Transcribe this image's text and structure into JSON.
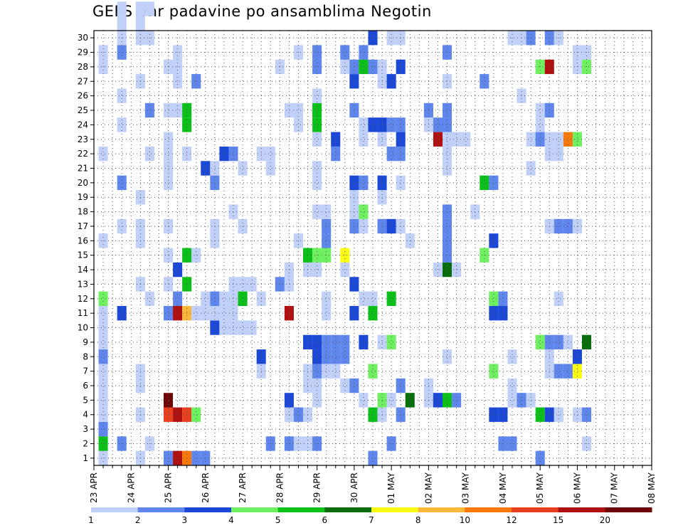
{
  "chart_data": {
    "type": "heatmap",
    "title": "GEFS 6hr padavine po ansamblima Negotin",
    "xlabel": "",
    "ylabel": "",
    "x_tick_labels": [
      "23 APR",
      "24 APR",
      "25 APR",
      "26 APR",
      "27 APR",
      "28 APR",
      "29 APR",
      "30 APR",
      "01 MAY",
      "02 MAY",
      "03 MAY",
      "04 MAY",
      "05 MAY",
      "06 MAY",
      "07 MAY",
      "08 MAY"
    ],
    "y_tick_labels": [
      "1",
      "2",
      "3",
      "4",
      "5",
      "6",
      "7",
      "8",
      "9",
      "10",
      "11",
      "12",
      "13",
      "14",
      "15",
      "16",
      "17",
      "18",
      "19",
      "20",
      "21",
      "22",
      "23",
      "24",
      "25",
      "26",
      "27",
      "28",
      "29",
      "30"
    ],
    "ylim": [
      1,
      30
    ],
    "x_unit": "6-hour step from 23 APR 00Z",
    "grid": true,
    "colorbar": {
      "placement": "bottom",
      "colors": [
        "#c0d0f8",
        "#5e86ec",
        "#1c48d8",
        "#6ef060",
        "#0cc01a",
        "#086e0c",
        "#fcfc12",
        "#fcb83a",
        "#f8780c",
        "#e8401e",
        "#b01010",
        "#6e0808"
      ],
      "labels": [
        "1",
        "2",
        "3",
        "4",
        "5",
        "6",
        "7",
        "8",
        "10",
        "12",
        "15",
        "20"
      ]
    },
    "cells": [
      [
        1,
        1,
        1
      ],
      [
        1,
        2,
        5
      ],
      [
        1,
        3,
        2
      ],
      [
        1,
        4,
        1
      ],
      [
        1,
        5,
        1
      ],
      [
        1,
        6,
        1
      ],
      [
        1,
        7,
        1
      ],
      [
        1,
        8,
        2
      ],
      [
        1,
        9,
        1
      ],
      [
        1,
        10,
        1
      ],
      [
        1,
        11,
        1
      ],
      [
        1,
        12,
        4
      ],
      [
        1,
        16,
        1
      ],
      [
        1,
        22,
        1
      ],
      [
        1,
        28,
        1
      ],
      [
        1,
        29,
        1
      ],
      [
        3,
        2,
        2
      ],
      [
        3,
        11,
        3
      ],
      [
        3,
        17,
        1
      ],
      [
        3,
        20,
        2
      ],
      [
        3,
        24,
        1
      ],
      [
        3,
        26,
        1
      ],
      [
        3,
        29,
        2
      ],
      [
        3,
        30,
        1
      ],
      [
        3,
        31,
        1
      ],
      [
        3,
        32,
        1
      ],
      [
        5,
        1,
        1
      ],
      [
        5,
        4,
        1
      ],
      [
        5,
        6,
        1
      ],
      [
        5,
        7,
        1
      ],
      [
        5,
        13,
        1
      ],
      [
        5,
        16,
        1
      ],
      [
        5,
        17,
        1
      ],
      [
        5,
        19,
        1
      ],
      [
        5,
        27,
        1
      ],
      [
        5,
        30,
        1
      ],
      [
        5,
        31,
        1
      ],
      [
        5,
        32,
        1
      ],
      [
        6,
        2,
        1
      ],
      [
        6,
        12,
        1
      ],
      [
        6,
        22,
        1
      ],
      [
        6,
        25,
        2
      ],
      [
        6,
        30,
        1
      ],
      [
        6,
        32,
        1
      ],
      [
        8,
        1,
        2
      ],
      [
        8,
        4,
        10
      ],
      [
        8,
        5,
        12
      ],
      [
        8,
        11,
        2
      ],
      [
        8,
        13,
        1
      ],
      [
        8,
        15,
        1
      ],
      [
        8,
        17,
        1
      ],
      [
        8,
        20,
        1
      ],
      [
        8,
        21,
        1
      ],
      [
        8,
        22,
        1
      ],
      [
        8,
        23,
        1
      ],
      [
        8,
        25,
        1
      ],
      [
        8,
        28,
        1
      ],
      [
        9,
        1,
        11
      ],
      [
        9,
        4,
        11
      ],
      [
        9,
        11,
        11
      ],
      [
        9,
        12,
        2
      ],
      [
        9,
        14,
        3
      ],
      [
        9,
        25,
        1
      ],
      [
        9,
        27,
        1
      ],
      [
        9,
        28,
        1
      ],
      [
        9,
        29,
        1
      ],
      [
        10,
        1,
        9
      ],
      [
        10,
        4,
        10
      ],
      [
        10,
        11,
        8
      ],
      [
        10,
        13,
        5
      ],
      [
        10,
        15,
        5
      ],
      [
        10,
        22,
        1
      ],
      [
        10,
        24,
        5
      ],
      [
        10,
        25,
        5
      ],
      [
        11,
        1,
        2
      ],
      [
        11,
        4,
        4
      ],
      [
        11,
        11,
        1
      ],
      [
        11,
        15,
        1
      ],
      [
        11,
        27,
        2
      ],
      [
        12,
        1,
        2
      ],
      [
        12,
        11,
        1
      ],
      [
        12,
        12,
        1
      ],
      [
        12,
        21,
        3
      ],
      [
        13,
        10,
        3
      ],
      [
        13,
        11,
        1
      ],
      [
        13,
        12,
        2
      ],
      [
        13,
        16,
        1
      ],
      [
        13,
        17,
        1
      ],
      [
        13,
        20,
        2
      ],
      [
        13,
        21,
        1
      ],
      [
        14,
        10,
        1
      ],
      [
        14,
        11,
        1
      ],
      [
        14,
        12,
        1
      ],
      [
        14,
        22,
        3
      ],
      [
        15,
        10,
        1
      ],
      [
        15,
        11,
        1
      ],
      [
        15,
        12,
        1
      ],
      [
        15,
        13,
        1
      ],
      [
        15,
        18,
        1
      ],
      [
        15,
        22,
        2
      ],
      [
        16,
        10,
        1
      ],
      [
        16,
        12,
        5
      ],
      [
        16,
        13,
        1
      ],
      [
        16,
        17,
        1
      ],
      [
        16,
        21,
        1
      ],
      [
        17,
        10,
        1
      ],
      [
        17,
        13,
        1
      ],
      [
        18,
        7,
        1
      ],
      [
        18,
        8,
        3
      ],
      [
        18,
        12,
        1
      ],
      [
        18,
        22,
        1
      ],
      [
        19,
        2,
        2
      ],
      [
        19,
        21,
        1
      ],
      [
        19,
        22,
        1
      ],
      [
        20,
        13,
        2
      ],
      [
        20,
        28,
        1
      ],
      [
        21,
        2,
        2
      ],
      [
        21,
        4,
        1
      ],
      [
        21,
        5,
        3
      ],
      [
        21,
        11,
        11
      ],
      [
        21,
        13,
        1
      ],
      [
        21,
        14,
        1
      ],
      [
        21,
        25,
        1
      ],
      [
        22,
        2,
        1
      ],
      [
        22,
        4,
        2
      ],
      [
        22,
        16,
        1
      ],
      [
        22,
        24,
        1
      ],
      [
        22,
        25,
        1
      ],
      [
        22,
        29,
        1
      ],
      [
        23,
        2,
        1
      ],
      [
        23,
        4,
        1
      ],
      [
        23,
        6,
        1
      ],
      [
        23,
        7,
        1
      ],
      [
        23,
        9,
        3
      ],
      [
        23,
        14,
        1
      ],
      [
        23,
        15,
        5
      ],
      [
        24,
        2,
        2
      ],
      [
        24,
        5,
        1
      ],
      [
        24,
        6,
        1
      ],
      [
        24,
        7,
        2
      ],
      [
        24,
        8,
        3
      ],
      [
        24,
        9,
        3
      ],
      [
        24,
        14,
        1
      ],
      [
        24,
        15,
        4
      ],
      [
        24,
        18,
        1
      ],
      [
        24,
        20,
        1
      ],
      [
        24,
        21,
        1
      ],
      [
        24,
        23,
        1
      ],
      [
        24,
        24,
        5
      ],
      [
        24,
        25,
        5
      ],
      [
        24,
        26,
        1
      ],
      [
        24,
        28,
        2
      ],
      [
        24,
        29,
        2
      ],
      [
        25,
        7,
        1
      ],
      [
        25,
        8,
        2
      ],
      [
        25,
        9,
        2
      ],
      [
        25,
        11,
        1
      ],
      [
        25,
        12,
        1
      ],
      [
        25,
        15,
        4
      ],
      [
        25,
        16,
        2
      ],
      [
        25,
        17,
        2
      ],
      [
        25,
        18,
        1
      ],
      [
        26,
        7,
        1
      ],
      [
        26,
        8,
        2
      ],
      [
        26,
        9,
        2
      ],
      [
        26,
        22,
        2
      ],
      [
        26,
        23,
        3
      ],
      [
        27,
        6,
        1
      ],
      [
        27,
        8,
        2
      ],
      [
        27,
        9,
        2
      ],
      [
        27,
        14,
        1
      ],
      [
        27,
        15,
        7
      ],
      [
        27,
        28,
        1
      ],
      [
        27,
        29,
        2
      ],
      [
        28,
        6,
        2
      ],
      [
        28,
        11,
        3
      ],
      [
        28,
        13,
        3
      ],
      [
        28,
        17,
        2
      ],
      [
        28,
        18,
        1
      ],
      [
        28,
        19,
        1
      ],
      [
        28,
        20,
        3
      ],
      [
        28,
        25,
        2
      ],
      [
        28,
        27,
        3
      ],
      [
        28,
        28,
        2
      ],
      [
        29,
        5,
        1
      ],
      [
        29,
        9,
        3
      ],
      [
        29,
        12,
        1
      ],
      [
        29,
        17,
        1
      ],
      [
        29,
        18,
        4
      ],
      [
        29,
        20,
        2
      ],
      [
        29,
        23,
        1
      ],
      [
        29,
        24,
        1
      ],
      [
        29,
        28,
        5
      ],
      [
        29,
        29,
        2
      ],
      [
        30,
        1,
        2
      ],
      [
        30,
        4,
        5
      ],
      [
        30,
        7,
        4
      ],
      [
        30,
        11,
        5
      ],
      [
        30,
        12,
        1
      ],
      [
        30,
        24,
        3
      ],
      [
        30,
        28,
        2
      ],
      [
        30,
        30,
        3
      ],
      [
        31,
        4,
        1
      ],
      [
        31,
        5,
        4
      ],
      [
        31,
        9,
        1
      ],
      [
        31,
        17,
        2
      ],
      [
        31,
        19,
        1
      ],
      [
        31,
        20,
        3
      ],
      [
        31,
        23,
        1
      ],
      [
        31,
        24,
        3
      ],
      [
        31,
        27,
        1
      ],
      [
        31,
        28,
        1
      ],
      [
        32,
        2,
        2
      ],
      [
        32,
        5,
        1
      ],
      [
        32,
        9,
        4
      ],
      [
        32,
        12,
        5
      ],
      [
        32,
        17,
        3
      ],
      [
        32,
        22,
        2
      ],
      [
        32,
        24,
        2
      ],
      [
        32,
        27,
        3
      ],
      [
        32,
        30,
        1
      ],
      [
        33,
        4,
        2
      ],
      [
        33,
        6,
        2
      ],
      [
        33,
        17,
        1
      ],
      [
        33,
        20,
        1
      ],
      [
        33,
        22,
        2
      ],
      [
        33,
        23,
        3
      ],
      [
        33,
        24,
        2
      ],
      [
        33,
        28,
        3
      ],
      [
        33,
        30,
        1
      ],
      [
        34,
        5,
        6
      ],
      [
        34,
        16,
        1
      ],
      [
        36,
        5,
        1
      ],
      [
        36,
        6,
        1
      ],
      [
        36,
        24,
        1
      ],
      [
        36,
        25,
        2
      ],
      [
        37,
        5,
        3
      ],
      [
        37,
        14,
        1
      ],
      [
        37,
        23,
        11
      ],
      [
        37,
        24,
        2
      ],
      [
        38,
        5,
        5
      ],
      [
        38,
        8,
        1
      ],
      [
        38,
        14,
        6
      ],
      [
        38,
        15,
        2
      ],
      [
        38,
        16,
        2
      ],
      [
        38,
        17,
        2
      ],
      [
        38,
        18,
        2
      ],
      [
        38,
        21,
        1
      ],
      [
        38,
        22,
        1
      ],
      [
        38,
        23,
        1
      ],
      [
        38,
        24,
        2
      ],
      [
        38,
        25,
        2
      ],
      [
        38,
        27,
        1
      ],
      [
        38,
        29,
        2
      ],
      [
        39,
        5,
        2
      ],
      [
        39,
        14,
        1
      ],
      [
        39,
        23,
        1
      ],
      [
        40,
        23,
        1
      ],
      [
        41,
        18,
        1
      ],
      [
        42,
        15,
        4
      ],
      [
        42,
        20,
        5
      ],
      [
        42,
        27,
        2
      ],
      [
        43,
        4,
        3
      ],
      [
        43,
        7,
        4
      ],
      [
        43,
        11,
        3
      ],
      [
        43,
        12,
        4
      ],
      [
        43,
        16,
        3
      ],
      [
        43,
        20,
        2
      ],
      [
        44,
        2,
        2
      ],
      [
        44,
        4,
        3
      ],
      [
        44,
        11,
        3
      ],
      [
        44,
        12,
        2
      ],
      [
        45,
        2,
        2
      ],
      [
        45,
        5,
        1
      ],
      [
        45,
        6,
        1
      ],
      [
        45,
        8,
        1
      ],
      [
        45,
        30,
        1
      ],
      [
        46,
        5,
        2
      ],
      [
        46,
        26,
        1
      ],
      [
        46,
        30,
        1
      ],
      [
        47,
        5,
        1
      ],
      [
        47,
        21,
        1
      ],
      [
        47,
        23,
        1
      ],
      [
        47,
        30,
        2
      ],
      [
        48,
        1,
        2
      ],
      [
        48,
        4,
        5
      ],
      [
        48,
        9,
        4
      ],
      [
        48,
        23,
        2
      ],
      [
        48,
        24,
        1
      ],
      [
        48,
        25,
        1
      ],
      [
        48,
        28,
        4
      ],
      [
        49,
        4,
        3
      ],
      [
        49,
        7,
        1
      ],
      [
        49,
        8,
        1
      ],
      [
        49,
        9,
        2
      ],
      [
        49,
        17,
        1
      ],
      [
        49,
        22,
        1
      ],
      [
        49,
        23,
        1
      ],
      [
        49,
        25,
        2
      ],
      [
        49,
        28,
        11
      ],
      [
        49,
        30,
        2
      ],
      [
        50,
        4,
        1
      ],
      [
        50,
        7,
        2
      ],
      [
        50,
        9,
        2
      ],
      [
        50,
        12,
        1
      ],
      [
        50,
        17,
        2
      ],
      [
        50,
        22,
        1
      ],
      [
        50,
        23,
        1
      ],
      [
        50,
        30,
        1
      ],
      [
        51,
        7,
        2
      ],
      [
        51,
        9,
        1
      ],
      [
        51,
        17,
        2
      ],
      [
        51,
        23,
        9
      ],
      [
        52,
        4,
        1
      ],
      [
        52,
        7,
        7
      ],
      [
        52,
        8,
        3
      ],
      [
        52,
        17,
        1
      ],
      [
        52,
        23,
        4
      ],
      [
        52,
        28,
        1
      ],
      [
        52,
        29,
        1
      ],
      [
        53,
        2,
        1
      ],
      [
        53,
        4,
        2
      ],
      [
        53,
        9,
        6
      ],
      [
        53,
        28,
        4
      ],
      [
        53,
        29,
        1
      ]
    ]
  }
}
